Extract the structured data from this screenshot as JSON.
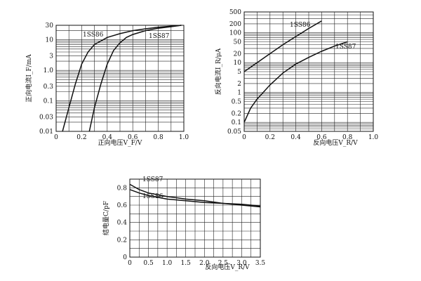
{
  "chart_data": [
    {
      "type": "line",
      "yscale": "log",
      "xlabel": "正向电压V_F/V",
      "ylabel": "正向电流I_F/mA",
      "xlim": [
        0,
        1.0
      ],
      "ylim": [
        0.01,
        30
      ],
      "x_ticks": [
        "0",
        "0.2",
        "0.4",
        "0.6",
        "0.8",
        "1.0"
      ],
      "y_ticks": [
        "0.01",
        "0.03",
        "0.1",
        "0.3",
        "1.0",
        "3",
        "10",
        "30"
      ],
      "grid": true,
      "series": [
        {
          "name": "1SS86",
          "x": [
            0.05,
            0.1,
            0.15,
            0.2,
            0.25,
            0.3,
            0.4,
            0.5,
            0.6,
            0.7,
            0.8,
            0.9,
            0.98
          ],
          "y": [
            0.01,
            0.06,
            0.35,
            1.6,
            4.0,
            7.0,
            12.0,
            16.0,
            20.0,
            23.0,
            26.0,
            28.0,
            30.0
          ]
        },
        {
          "name": "1SS87",
          "x": [
            0.26,
            0.3,
            0.35,
            0.4,
            0.45,
            0.5,
            0.55,
            0.6,
            0.7,
            0.8,
            0.9,
            0.98
          ],
          "y": [
            0.01,
            0.06,
            0.35,
            1.6,
            4.5,
            8.0,
            12.0,
            15.0,
            20.0,
            24.0,
            27.0,
            30.0
          ]
        }
      ]
    },
    {
      "type": "line",
      "yscale": "log",
      "xlabel": "反向电压V_R/V",
      "ylabel": "反向电流I_R/μA",
      "xlim": [
        0,
        1.0
      ],
      "ylim": [
        0.05,
        500
      ],
      "x_ticks": [
        "0",
        "0.2",
        "0.4",
        "0.6",
        "0.8",
        "1.0"
      ],
      "y_ticks": [
        "0.05",
        "0.1",
        "0.2",
        "0.5",
        "1",
        "2",
        "5",
        "10",
        "20",
        "50",
        "100",
        "200",
        "500"
      ],
      "grid": true,
      "series": [
        {
          "name": "1SS86",
          "x": [
            0,
            0.1,
            0.2,
            0.3,
            0.4,
            0.5,
            0.6
          ],
          "y": [
            5,
            10,
            20,
            40,
            75,
            140,
            250
          ]
        },
        {
          "name": "1SS87",
          "x": [
            0,
            0.05,
            0.1,
            0.2,
            0.3,
            0.4,
            0.5,
            0.6,
            0.7,
            0.8
          ],
          "y": [
            0.1,
            0.3,
            0.6,
            1.8,
            4.5,
            9,
            15,
            24,
            36,
            50
          ]
        }
      ]
    },
    {
      "type": "line",
      "xlabel": "反向电压V_R/V",
      "ylabel": "结电量C/pF",
      "xlim": [
        0,
        3.5
      ],
      "ylim": [
        0,
        0.9
      ],
      "x_ticks": [
        "0",
        "0.5",
        "1.0",
        "1.5",
        "2.0",
        "2.5",
        "3.0",
        "3.5"
      ],
      "y_ticks": [
        "0",
        "0.2",
        "0.4",
        "0.6",
        "0.8"
      ],
      "grid": true,
      "series": [
        {
          "name": "1SS87",
          "x": [
            0,
            0.25,
            0.5,
            1.0,
            1.5,
            2.0,
            2.5,
            3.0,
            3.5
          ],
          "y": [
            0.84,
            0.78,
            0.74,
            0.7,
            0.67,
            0.65,
            0.62,
            0.6,
            0.58
          ]
        },
        {
          "name": "1SS86",
          "x": [
            0,
            0.25,
            0.5,
            1.0,
            1.5,
            2.0,
            2.5,
            3.0,
            3.5
          ],
          "y": [
            0.78,
            0.74,
            0.71,
            0.67,
            0.65,
            0.63,
            0.62,
            0.61,
            0.59
          ]
        }
      ]
    }
  ]
}
